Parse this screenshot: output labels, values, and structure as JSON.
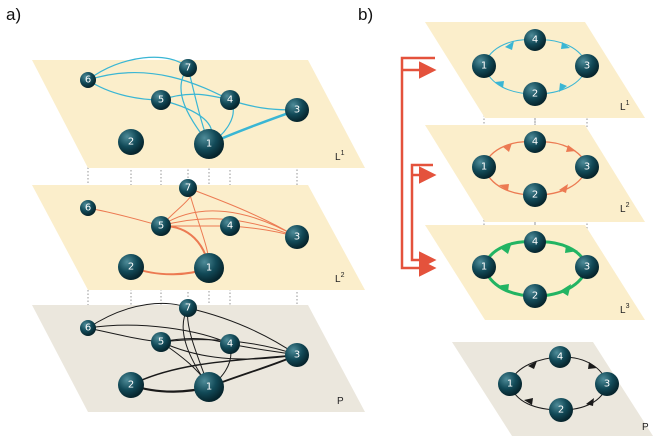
{
  "panels": [
    {
      "label": "a)"
    },
    {
      "label": "b)"
    }
  ],
  "node_labels": [
    "1",
    "2",
    "3",
    "4",
    "5",
    "6",
    "7"
  ],
  "layer_labels": {
    "L1": {
      "base": "L",
      "sup": "1"
    },
    "L2": {
      "base": "L",
      "sup": "2"
    },
    "L3": {
      "base": "L",
      "sup": "3"
    },
    "P": "P"
  },
  "colors": {
    "layer_fill": "#fbeecb",
    "projection_fill": "#ebe7dd",
    "node_fill": "#124a58",
    "L1_edge": "#3ab6d4",
    "L2_edge": "#ec7a52",
    "L3_edge": "#22b463",
    "P_edge": "#1a1a1a",
    "arrow": "#e4523c"
  }
}
